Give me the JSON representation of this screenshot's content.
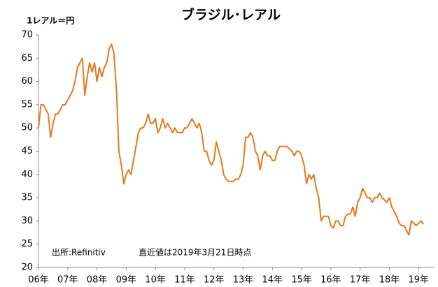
{
  "chart_data": {
    "type": "line",
    "title": "ブラジル･レアル",
    "y_label": "1レアル＝円",
    "annotations": [
      "出所:Refinitiv",
      "直近値は2019年3月21日時点"
    ],
    "xlim": [
      2006.0,
      2019.52
    ],
    "xticks": [
      {
        "value": 2006,
        "label": "06年"
      },
      {
        "value": 2007,
        "label": "07年"
      },
      {
        "value": 2008,
        "label": "08年"
      },
      {
        "value": 2009,
        "label": "09年"
      },
      {
        "value": 2010,
        "label": "10年"
      },
      {
        "value": 2011,
        "label": "11年"
      },
      {
        "value": 2012,
        "label": "12年"
      },
      {
        "value": 2013,
        "label": "13年"
      },
      {
        "value": 2014,
        "label": "14年"
      },
      {
        "value": 2015,
        "label": "15年"
      },
      {
        "value": 2016,
        "label": "16年"
      },
      {
        "value": 2017,
        "label": "17年"
      },
      {
        "value": 2018,
        "label": "18年"
      },
      {
        "value": 2019,
        "label": "19年"
      }
    ],
    "ylim": [
      20,
      70
    ],
    "yticks": [
      20,
      25,
      30,
      35,
      40,
      45,
      50,
      55,
      60,
      65,
      70
    ],
    "series": [
      {
        "color": "#e8781e",
        "x": [
          2006,
          2006.083,
          2006.167,
          2006.25,
          2006.333,
          2006.417,
          2006.5,
          2006.583,
          2006.667,
          2006.75,
          2006.833,
          2006.917,
          2007,
          2007.083,
          2007.167,
          2007.25,
          2007.333,
          2007.417,
          2007.5,
          2007.583,
          2007.667,
          2007.75,
          2007.833,
          2007.917,
          2008,
          2008.083,
          2008.167,
          2008.25,
          2008.333,
          2008.417,
          2008.5,
          2008.583,
          2008.667,
          2008.75,
          2008.833,
          2008.917,
          2009,
          2009.083,
          2009.167,
          2009.25,
          2009.333,
          2009.417,
          2009.5,
          2009.583,
          2009.667,
          2009.75,
          2009.833,
          2009.917,
          2010,
          2010.083,
          2010.167,
          2010.25,
          2010.333,
          2010.417,
          2010.5,
          2010.583,
          2010.667,
          2010.75,
          2010.833,
          2010.917,
          2011,
          2011.083,
          2011.167,
          2011.25,
          2011.333,
          2011.417,
          2011.5,
          2011.583,
          2011.667,
          2011.75,
          2011.833,
          2011.917,
          2012,
          2012.083,
          2012.167,
          2012.25,
          2012.333,
          2012.417,
          2012.5,
          2012.583,
          2012.667,
          2012.75,
          2012.833,
          2012.917,
          2013,
          2013.083,
          2013.167,
          2013.25,
          2013.333,
          2013.417,
          2013.5,
          2013.583,
          2013.667,
          2013.75,
          2013.833,
          2013.917,
          2014,
          2014.083,
          2014.167,
          2014.25,
          2014.333,
          2014.417,
          2014.5,
          2014.583,
          2014.667,
          2014.75,
          2014.833,
          2014.917,
          2015,
          2015.083,
          2015.167,
          2015.25,
          2015.333,
          2015.417,
          2015.5,
          2015.583,
          2015.667,
          2015.75,
          2015.833,
          2015.917,
          2016,
          2016.083,
          2016.167,
          2016.25,
          2016.333,
          2016.417,
          2016.5,
          2016.583,
          2016.667,
          2016.75,
          2016.833,
          2016.917,
          2017,
          2017.083,
          2017.167,
          2017.25,
          2017.333,
          2017.417,
          2017.5,
          2017.583,
          2017.667,
          2017.75,
          2017.833,
          2017.917,
          2018,
          2018.083,
          2018.167,
          2018.25,
          2018.333,
          2018.417,
          2018.5,
          2018.583,
          2018.667,
          2018.75,
          2018.833,
          2018.917,
          2019,
          2019.083,
          2019.167
        ],
        "values": [
          50,
          55,
          55,
          54,
          53,
          48,
          51,
          53,
          53,
          54,
          55,
          55,
          56,
          57,
          58,
          60,
          63,
          64,
          65,
          57,
          61,
          64,
          62,
          64,
          60,
          63,
          61,
          63,
          64,
          67,
          68,
          66,
          58,
          45,
          42,
          38,
          40,
          41,
          40,
          43,
          46,
          49,
          50,
          50,
          51,
          53,
          51,
          51,
          52,
          49,
          50,
          52,
          50,
          51,
          50,
          49,
          50,
          49,
          49,
          49,
          50,
          50,
          51,
          52,
          51,
          50,
          51,
          49,
          45,
          45,
          43,
          42,
          43,
          47,
          45,
          43,
          40,
          39,
          38.5,
          38.5,
          38.5,
          39,
          39,
          40,
          42,
          48,
          48,
          49,
          48,
          45,
          44,
          41,
          44,
          45,
          44,
          44,
          43,
          43,
          45,
          46,
          46,
          46,
          46,
          45.5,
          45,
          44,
          45,
          45,
          44,
          42,
          38,
          40,
          39,
          40,
          37,
          35,
          30,
          31,
          31,
          31,
          29,
          28.5,
          30,
          30,
          29,
          29,
          31,
          31.5,
          31.5,
          33,
          31,
          34,
          35,
          37,
          36,
          35,
          35,
          34,
          35,
          35,
          36,
          35,
          34.5,
          34,
          35,
          33,
          32,
          31,
          29.5,
          29,
          29,
          28,
          27,
          30,
          29.5,
          29,
          29.5,
          30,
          29.3
        ]
      }
    ]
  }
}
